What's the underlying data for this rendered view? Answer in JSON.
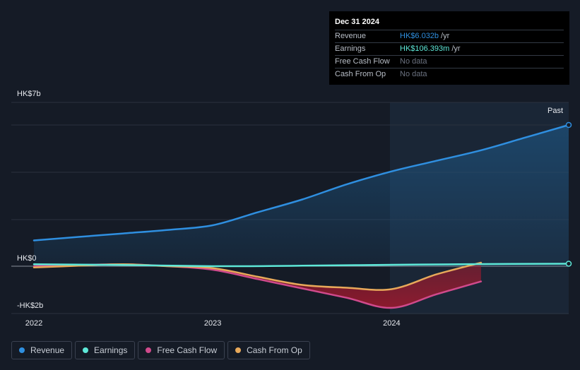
{
  "colors": {
    "revenue": "#2f8fe0",
    "earnings": "#5ee8d8",
    "fcf": "#d04a8c",
    "cfo": "#e8a95a"
  },
  "tooltip": {
    "date": "Dec 31 2024",
    "rows": [
      {
        "label": "Revenue",
        "value": "HK$6.032b",
        "unit": "/yr",
        "color": "#2f8fe0"
      },
      {
        "label": "Earnings",
        "value": "HK$106.393m",
        "unit": "/yr",
        "color": "#5ee8d8"
      },
      {
        "label": "Free Cash Flow",
        "value": "No data",
        "unit": "",
        "color": ""
      },
      {
        "label": "Cash From Op",
        "value": "No data",
        "unit": "",
        "color": ""
      }
    ]
  },
  "legend": [
    {
      "label": "Revenue",
      "color": "#2f8fe0"
    },
    {
      "label": "Earnings",
      "color": "#5ee8d8"
    },
    {
      "label": "Free Cash Flow",
      "color": "#d04a8c"
    },
    {
      "label": "Cash From Op",
      "color": "#e8a95a"
    }
  ],
  "chart_data": {
    "type": "line",
    "title": "",
    "xlabel": "",
    "ylabel": "",
    "past_label": "Past",
    "y_ticks": [
      {
        "label": "HK$7b",
        "value": 7
      },
      {
        "label": "HK$0",
        "value": 0
      },
      {
        "label": "-HK$2b",
        "value": -2
      }
    ],
    "x_ticks": [
      {
        "label": "2022",
        "value": 2022.0
      },
      {
        "label": "2023",
        "value": 2023.0
      },
      {
        "label": "2024",
        "value": 2024.0
      }
    ],
    "xlim": [
      2021.94,
      2024.99
    ],
    "ylim": [
      -2.0,
      7.0
    ],
    "past_start": 2024.0,
    "series": [
      {
        "name": "Revenue",
        "key": "revenue",
        "x": [
          2022.0,
          2022.25,
          2022.5,
          2022.75,
          2023.0,
          2023.25,
          2023.5,
          2023.75,
          2024.0,
          2024.25,
          2024.5,
          2024.75,
          2024.99
        ],
        "y": [
          1.1,
          1.25,
          1.4,
          1.55,
          1.75,
          2.3,
          2.85,
          3.5,
          4.05,
          4.5,
          4.95,
          5.5,
          6.03
        ]
      },
      {
        "name": "Earnings",
        "key": "earnings",
        "x": [
          2022.0,
          2022.5,
          2023.0,
          2023.5,
          2024.0,
          2024.5,
          2024.99
        ],
        "y": [
          0.08,
          0.05,
          0.0,
          0.02,
          0.06,
          0.09,
          0.106
        ]
      },
      {
        "name": "Free Cash Flow",
        "key": "fcf",
        "x": [
          2022.0,
          2022.25,
          2022.5,
          2022.75,
          2023.0,
          2023.25,
          2023.5,
          2023.75,
          2024.0,
          2024.25,
          2024.5
        ],
        "y": [
          0.0,
          0.05,
          0.08,
          0.0,
          -0.15,
          -0.55,
          -0.95,
          -1.35,
          -1.78,
          -1.2,
          -0.65
        ]
      },
      {
        "name": "Cash From Op",
        "key": "cfo",
        "x": [
          2022.0,
          2022.25,
          2022.5,
          2022.75,
          2023.0,
          2023.25,
          2023.5,
          2023.75,
          2024.0,
          2024.25,
          2024.5
        ],
        "y": [
          -0.05,
          0.02,
          0.08,
          0.0,
          -0.08,
          -0.45,
          -0.8,
          -0.92,
          -0.98,
          -0.35,
          0.15
        ]
      }
    ]
  }
}
